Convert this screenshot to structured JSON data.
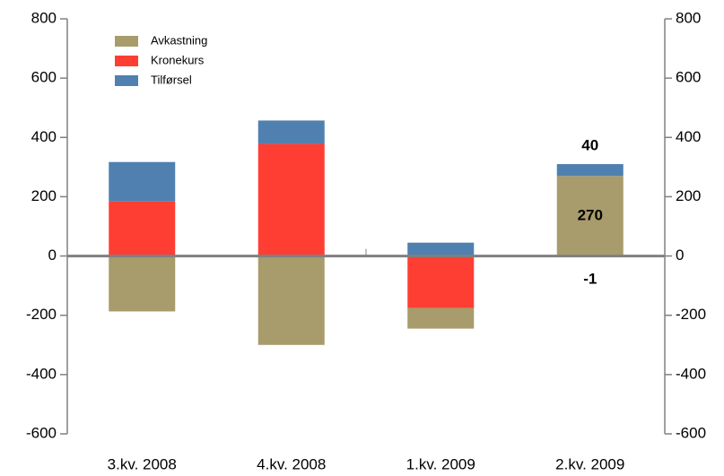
{
  "chart_data": {
    "type": "bar",
    "stacked": true,
    "categories": [
      "3.kv.   2008",
      "4.kv.   2008",
      "1.kv.   2009",
      "2.kv. 2009"
    ],
    "series": [
      {
        "name": "Avkastning",
        "color": "#a89b6c",
        "values": [
          -187,
          -300,
          -70,
          270
        ],
        "value_labels": [
          null,
          null,
          null,
          "270"
        ]
      },
      {
        "name": "Kronekurs",
        "color": "#ff3e33",
        "values": [
          184,
          378,
          -175,
          -1
        ],
        "value_labels": [
          null,
          null,
          null,
          "-1"
        ]
      },
      {
        "name": "Tilførsel",
        "color": "#5080b0",
        "values": [
          133,
          79,
          45,
          40
        ],
        "value_labels": [
          null,
          null,
          null,
          "40"
        ]
      }
    ],
    "ylim": [
      -600,
      800
    ],
    "yticks": [
      -600,
      -400,
      -200,
      0,
      200,
      400,
      600,
      800
    ],
    "y2lim": [
      -600,
      800
    ],
    "y2ticks": [
      -600,
      -400,
      -200,
      0,
      200,
      400,
      600,
      800
    ],
    "legend": "top-left"
  }
}
